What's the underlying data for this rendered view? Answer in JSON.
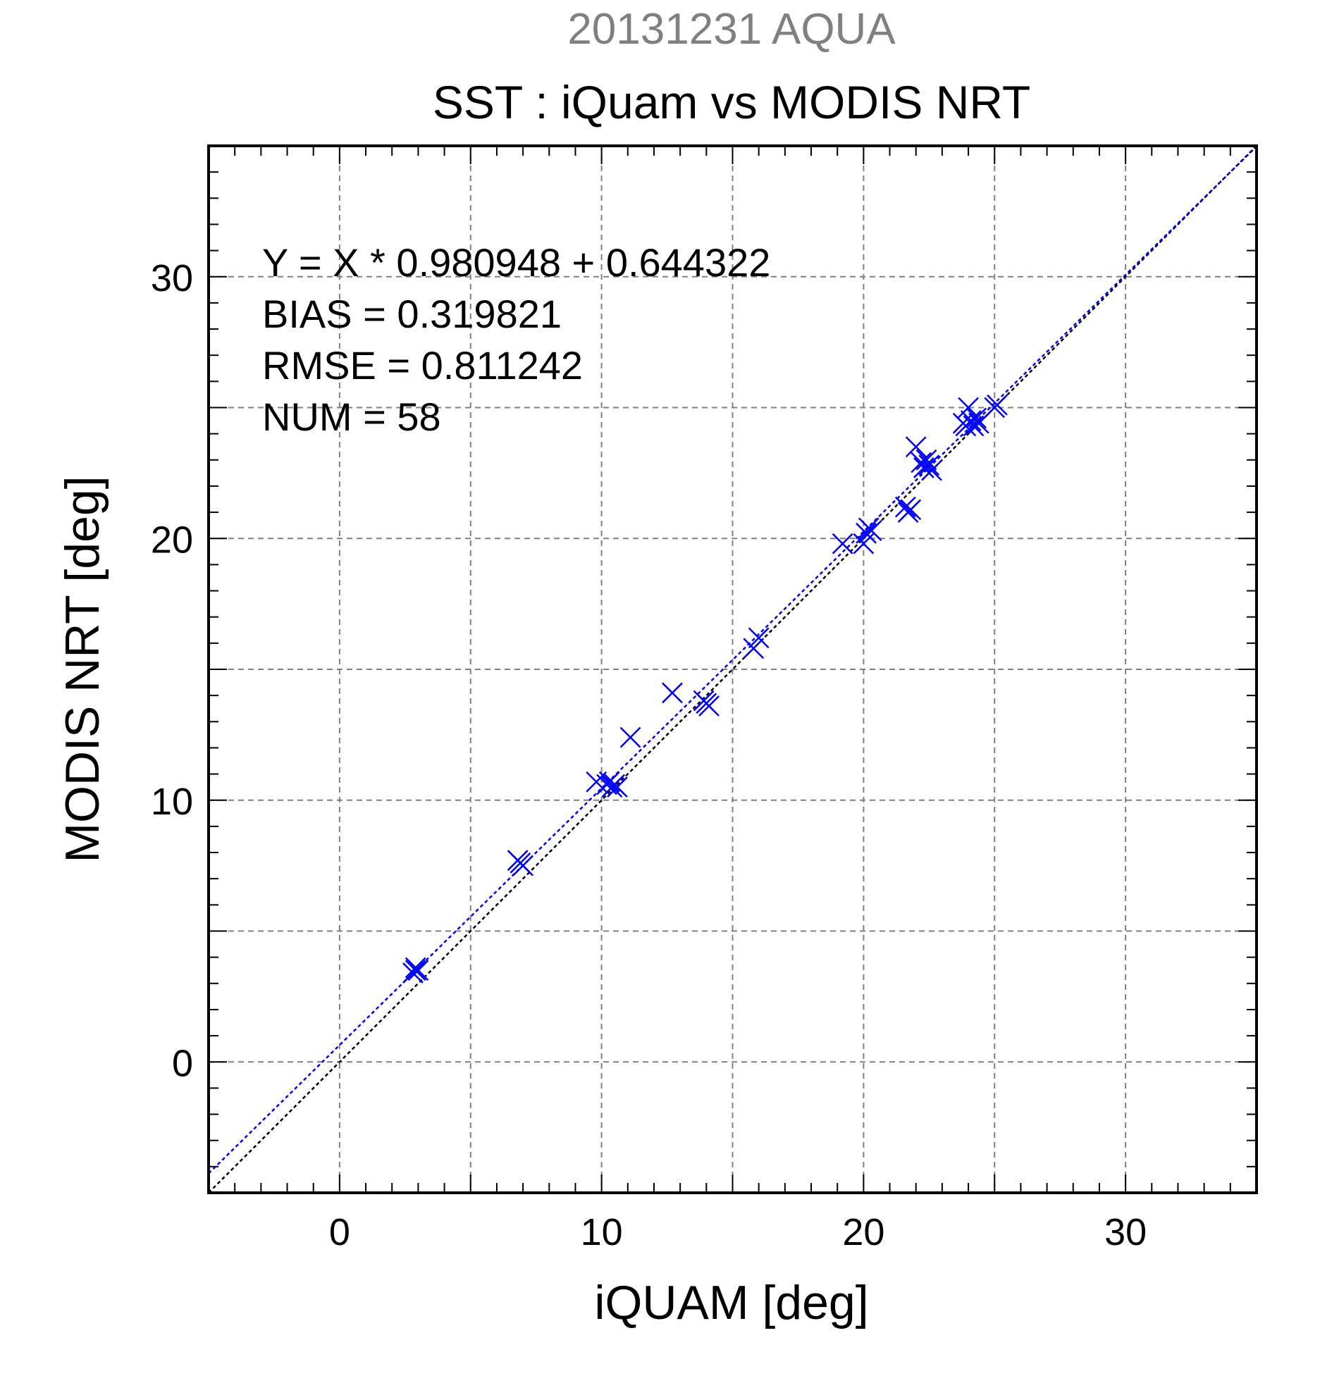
{
  "chart_data": {
    "type": "scatter",
    "title": "20131231 AQUA",
    "subtitle": "SST : iQuam vs MODIS NRT",
    "xlabel": "iQUAM [deg]",
    "ylabel": "MODIS NRT [deg]",
    "xlim": [
      -5,
      35
    ],
    "ylim": [
      -5,
      35
    ],
    "xticks": [
      0,
      10,
      20,
      30
    ],
    "yticks": [
      0,
      10,
      20,
      30
    ],
    "grid": true,
    "annotations": [
      "Y = X * 0.980948 + 0.644322",
      "BIAS = 0.319821",
      "RMSE = 0.811242",
      "NUM = 58"
    ],
    "fit_line": {
      "slope": 0.980948,
      "intercept": 0.644322,
      "color": "#0000ff"
    },
    "identity_line": {
      "slope": 1,
      "intercept": 0,
      "color": "#000000"
    },
    "series": [
      {
        "marker": "x",
        "color": "#0000ff",
        "points": [
          [
            2.8,
            3.4
          ],
          [
            2.9,
            3.6
          ],
          [
            3.0,
            3.5
          ],
          [
            2.9,
            3.5
          ],
          [
            6.9,
            7.6
          ],
          [
            7.0,
            7.5
          ],
          [
            6.8,
            7.7
          ],
          [
            9.8,
            10.7
          ],
          [
            10.2,
            10.6
          ],
          [
            10.4,
            10.5
          ],
          [
            10.5,
            10.6
          ],
          [
            10.3,
            10.7
          ],
          [
            10.6,
            10.5
          ],
          [
            11.1,
            12.4
          ],
          [
            12.7,
            14.1
          ],
          [
            13.9,
            13.8
          ],
          [
            14.1,
            13.6
          ],
          [
            14.0,
            13.7
          ],
          [
            15.8,
            15.8
          ],
          [
            16.0,
            16.2
          ],
          [
            19.2,
            19.8
          ],
          [
            20.0,
            19.8
          ],
          [
            20.1,
            20.2
          ],
          [
            20.2,
            20.4
          ],
          [
            20.3,
            20.3
          ],
          [
            21.6,
            21.2
          ],
          [
            21.7,
            21.0
          ],
          [
            21.8,
            21.1
          ],
          [
            22.0,
            23.5
          ],
          [
            22.2,
            22.9
          ],
          [
            22.3,
            22.7
          ],
          [
            22.4,
            23.0
          ],
          [
            22.5,
            22.8
          ],
          [
            22.6,
            22.6
          ],
          [
            23.8,
            24.4
          ],
          [
            23.9,
            24.3
          ],
          [
            24.0,
            25.0
          ],
          [
            24.1,
            24.5
          ],
          [
            24.2,
            24.3
          ],
          [
            24.3,
            24.6
          ],
          [
            24.4,
            24.4
          ],
          [
            25.0,
            25.0
          ],
          [
            25.1,
            25.1
          ]
        ]
      }
    ]
  }
}
